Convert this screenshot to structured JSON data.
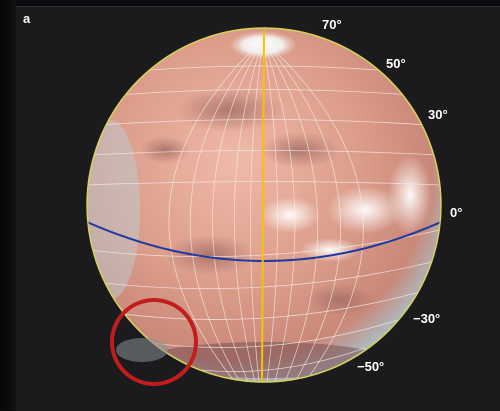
{
  "figure": {
    "panel_label": "a",
    "latitude_labels": [
      "70°",
      "50°",
      "30°",
      "0°",
      "−30°",
      "−50°"
    ]
  },
  "colors": {
    "background": "#1b1b1e",
    "planet": "#d89a86",
    "grid": "#f3f0ee",
    "central_meridian": "#f5c400",
    "equator": "#1f3aa0",
    "limb": "#d7d25a",
    "highlight_circle": "#c21d1d"
  }
}
